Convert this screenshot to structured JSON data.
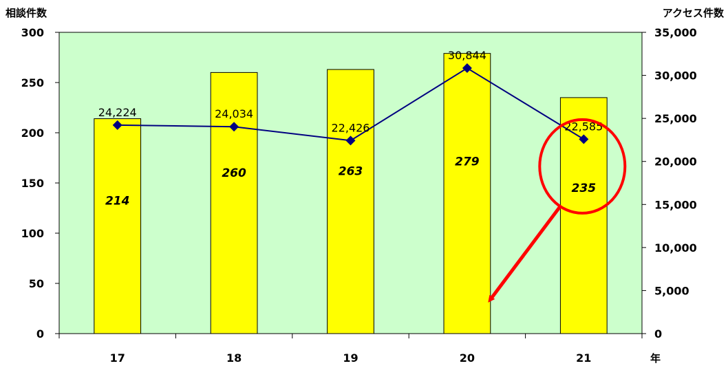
{
  "chart_data": {
    "type": "bar",
    "categories": [
      "17",
      "18",
      "19",
      "20",
      "21"
    ],
    "xlabel": "年",
    "ylabel": "相談件数",
    "y2label": "アクセス件数",
    "ylim": [
      0,
      300
    ],
    "y2lim": [
      0,
      35000
    ],
    "yticks": [
      "0",
      "50",
      "100",
      "150",
      "200",
      "250",
      "300"
    ],
    "y2ticks": [
      "0",
      "5,000",
      "10,000",
      "15,000",
      "20,000",
      "25,000",
      "30,000",
      "35,000"
    ],
    "series": [
      {
        "type": "bar",
        "axis": "left",
        "values": [
          214,
          260,
          263,
          279,
          235
        ],
        "labels": [
          "214",
          "260",
          "263",
          "279",
          "235"
        ],
        "color": "#ffff00"
      },
      {
        "type": "line",
        "axis": "right",
        "values": [
          24224,
          24034,
          22426,
          30844,
          22585
        ],
        "labels": [
          "24,224",
          "24,034",
          "22,426",
          "30,844",
          "22,585"
        ],
        "color": "#000080"
      }
    ],
    "plot_background": "#ccffcc",
    "highlight": {
      "category": "21",
      "color": "#ff0000"
    },
    "grid": false,
    "legend": "none"
  }
}
